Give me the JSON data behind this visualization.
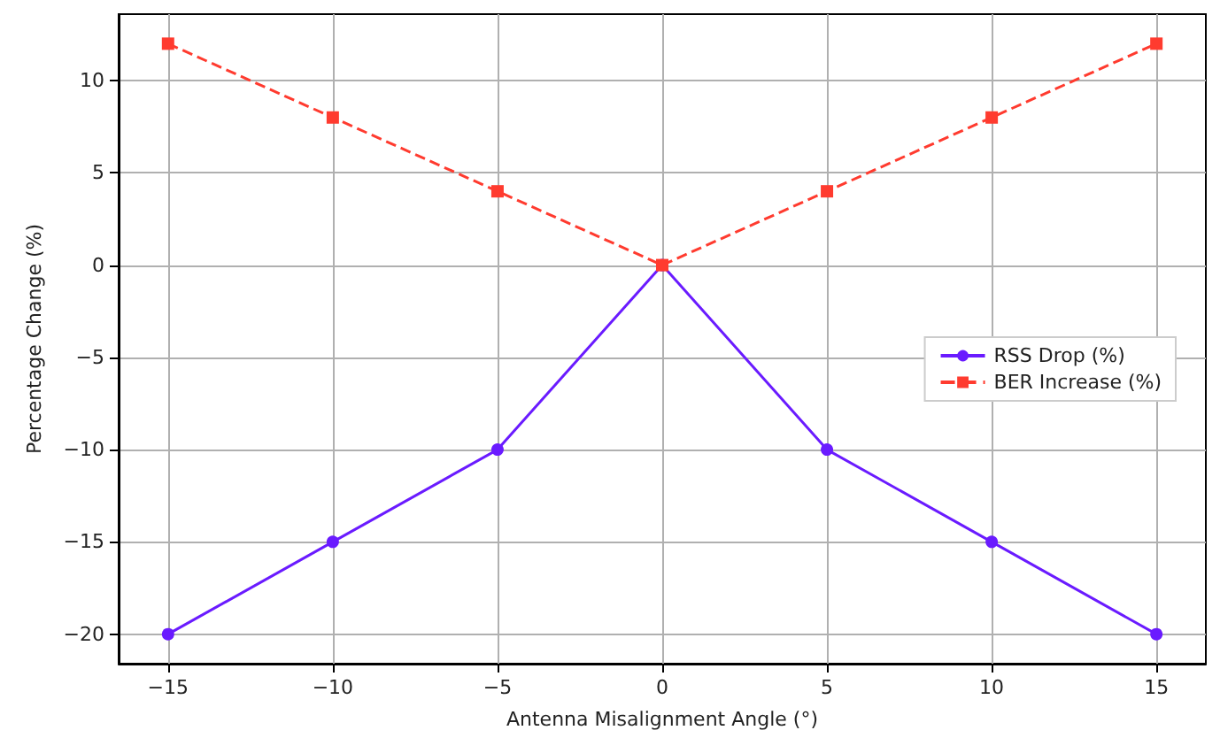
{
  "chart_data": {
    "type": "line",
    "xlabel": "Antenna Misalignment Angle (°)",
    "ylabel": "Percentage Change (%)",
    "x": [
      -15,
      -10,
      -5,
      0,
      5,
      10,
      15
    ],
    "series": [
      {
        "name": "RSS Drop (%)",
        "color": "#6a1bff",
        "marker": "circle",
        "line_style": "solid",
        "values": [
          -20,
          -15,
          -10,
          0,
          -10,
          -15,
          -20
        ]
      },
      {
        "name": "BER Increase (%)",
        "color": "#ff3b2f",
        "marker": "square",
        "line_style": "dashed",
        "values": [
          12,
          8,
          4,
          0,
          4,
          8,
          12
        ]
      }
    ],
    "xlim": [
      -16.5,
      16.5
    ],
    "xticks": [
      {
        "value": -15,
        "label": "−15"
      },
      {
        "value": -10,
        "label": "−10"
      },
      {
        "value": -5,
        "label": "−5"
      },
      0,
      5,
      10,
      15
    ],
    "ylim": [
      -21.6,
      13.6
    ],
    "yticks": [
      {
        "value": -20,
        "label": "−20"
      },
      {
        "value": -15,
        "label": "−15"
      },
      {
        "value": -10,
        "label": "−10"
      },
      {
        "value": -5,
        "label": "−5"
      },
      0,
      5,
      10
    ],
    "grid": true,
    "legend": "right"
  }
}
